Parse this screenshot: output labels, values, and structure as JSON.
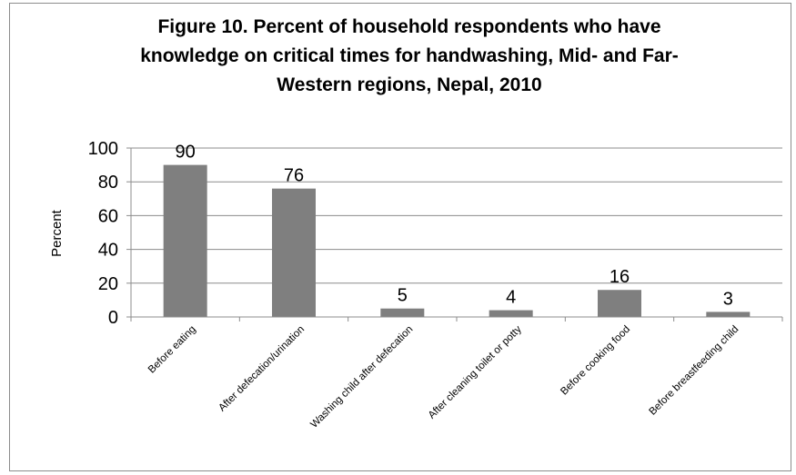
{
  "chart_data": {
    "type": "bar",
    "title": "Figure 10. Percent of household respondents who have knowledge on critical times for handwashing, Mid- and Far-Western regions, Nepal, 2010",
    "ylabel": "Percent",
    "xlabel": "",
    "ylim": [
      0,
      100
    ],
    "yticks": [
      0,
      20,
      40,
      60,
      80,
      100
    ],
    "grid": true,
    "legend": "none",
    "categories": [
      "Before eating",
      "After defecation/urination",
      "Washing child after defecation",
      "After cleaning toilet or potty",
      "Before cooking food",
      "Before breastfeeding child"
    ],
    "values": [
      90,
      76,
      5,
      4,
      16,
      3
    ],
    "data_labels": [
      "90",
      "76",
      "5",
      "4",
      "16",
      "3"
    ],
    "bar_color": "#7f7f7f"
  }
}
